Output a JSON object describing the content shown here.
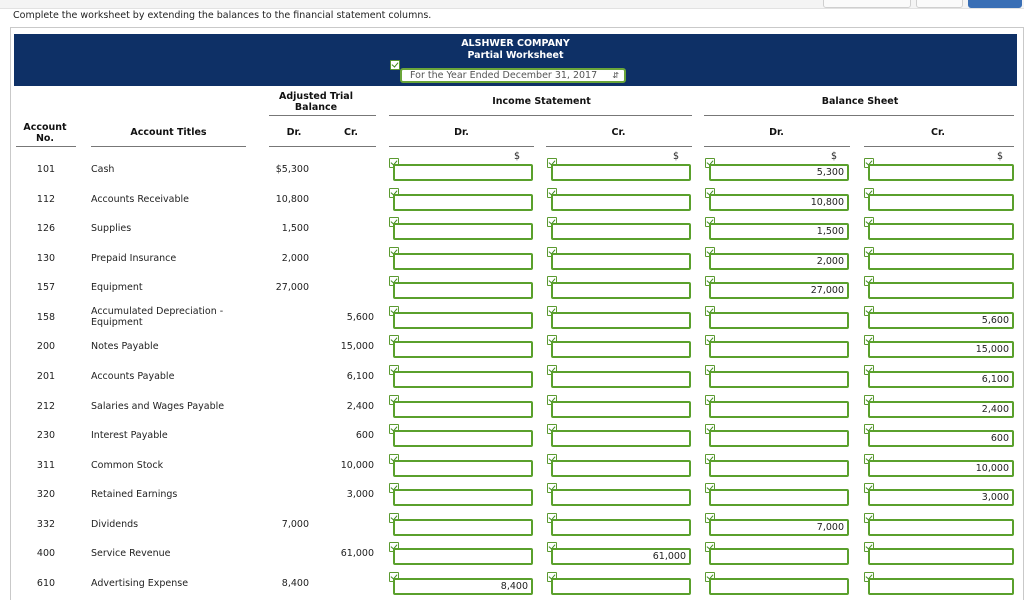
{
  "instruction": "Complete the worksheet by extending the balances to the financial statement columns.",
  "company": "ALSHWER COMPANY",
  "subtitle": "Partial Worksheet",
  "period": {
    "selected": "For the Year Ended December 31, 2017"
  },
  "headers": {
    "account_no": "Account No.",
    "account_titles": "Account Titles",
    "adjusted_trial_balance": "Adjusted Trial Balance",
    "income_statement": "Income Statement",
    "balance_sheet": "Balance Sheet",
    "dr": "Dr.",
    "cr": "Cr."
  },
  "dollar_sign": "$",
  "rows": [
    {
      "no": "101",
      "title": "Cash",
      "dr": "$5,300",
      "cr": "",
      "is_dr": "",
      "is_cr": "",
      "bs_dr": "5,300",
      "bs_cr": ""
    },
    {
      "no": "112",
      "title": "Accounts Receivable",
      "dr": "10,800",
      "cr": "",
      "is_dr": "",
      "is_cr": "",
      "bs_dr": "10,800",
      "bs_cr": ""
    },
    {
      "no": "126",
      "title": "Supplies",
      "dr": "1,500",
      "cr": "",
      "is_dr": "",
      "is_cr": "",
      "bs_dr": "1,500",
      "bs_cr": ""
    },
    {
      "no": "130",
      "title": "Prepaid Insurance",
      "dr": "2,000",
      "cr": "",
      "is_dr": "",
      "is_cr": "",
      "bs_dr": "2,000",
      "bs_cr": ""
    },
    {
      "no": "157",
      "title": "Equipment",
      "dr": "27,000",
      "cr": "",
      "is_dr": "",
      "is_cr": "",
      "bs_dr": "27,000",
      "bs_cr": ""
    },
    {
      "no": "158",
      "title": "Accumulated Depreciation - Equipment",
      "dr": "",
      "cr": "5,600",
      "is_dr": "",
      "is_cr": "",
      "bs_dr": "",
      "bs_cr": "5,600"
    },
    {
      "no": "200",
      "title": "Notes Payable",
      "dr": "",
      "cr": "15,000",
      "is_dr": "",
      "is_cr": "",
      "bs_dr": "",
      "bs_cr": "15,000"
    },
    {
      "no": "201",
      "title": "Accounts Payable",
      "dr": "",
      "cr": "6,100",
      "is_dr": "",
      "is_cr": "",
      "bs_dr": "",
      "bs_cr": "6,100"
    },
    {
      "no": "212",
      "title": "Salaries and Wages Payable",
      "dr": "",
      "cr": "2,400",
      "is_dr": "",
      "is_cr": "",
      "bs_dr": "",
      "bs_cr": "2,400"
    },
    {
      "no": "230",
      "title": "Interest Payable",
      "dr": "",
      "cr": "600",
      "is_dr": "",
      "is_cr": "",
      "bs_dr": "",
      "bs_cr": "600"
    },
    {
      "no": "311",
      "title": "Common Stock",
      "dr": "",
      "cr": "10,000",
      "is_dr": "",
      "is_cr": "",
      "bs_dr": "",
      "bs_cr": "10,000"
    },
    {
      "no": "320",
      "title": "Retained Earnings",
      "dr": "",
      "cr": "3,000",
      "is_dr": "",
      "is_cr": "",
      "bs_dr": "",
      "bs_cr": "3,000"
    },
    {
      "no": "332",
      "title": "Dividends",
      "dr": "7,000",
      "cr": "",
      "is_dr": "",
      "is_cr": "",
      "bs_dr": "7,000",
      "bs_cr": ""
    },
    {
      "no": "400",
      "title": "Service Revenue",
      "dr": "",
      "cr": "61,000",
      "is_dr": "",
      "is_cr": "61,000",
      "bs_dr": "",
      "bs_cr": ""
    },
    {
      "no": "610",
      "title": "Advertising Expense",
      "dr": "8,400",
      "cr": "",
      "is_dr": "8,400",
      "is_cr": "",
      "bs_dr": "",
      "bs_cr": ""
    }
  ],
  "colors": {
    "banner": "#0e3066",
    "input_border": "#5aa02c",
    "check": "#3d8a1c"
  }
}
